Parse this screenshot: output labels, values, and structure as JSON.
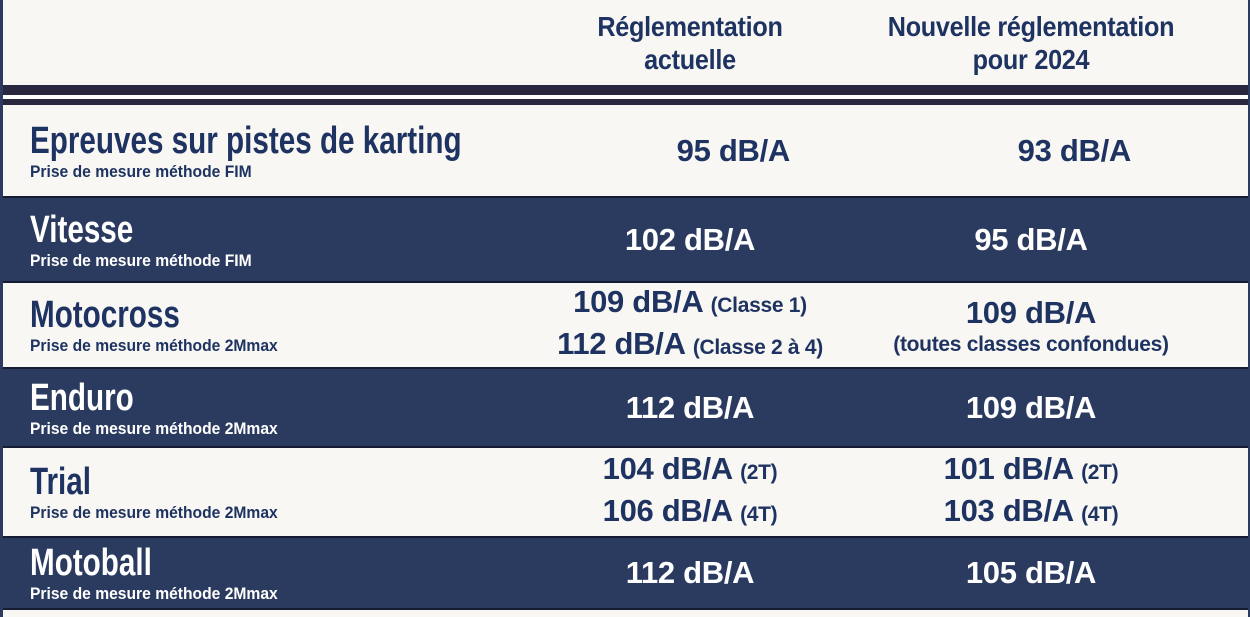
{
  "colors": {
    "band_navy": "#2b3b60",
    "text_navy": "#1e3361",
    "divider_dark": "#29263f",
    "background_offwhite": "#f8f7f3",
    "text_on_navy": "#ffffff"
  },
  "header": {
    "current_label": "Réglementation actuelle",
    "new_label": "Nouvelle réglementation pour 2024"
  },
  "rows": [
    {
      "title": "Epreuves sur pistes de karting",
      "subtitle": "Prise de mesure méthode FIM",
      "theme": "light",
      "current": [
        {
          "value": "95 dB/A",
          "note": ""
        }
      ],
      "new": [
        {
          "value": "93 dB/A",
          "note": ""
        }
      ]
    },
    {
      "title": "Vitesse",
      "subtitle": "Prise de mesure méthode FIM",
      "theme": "dark",
      "current": [
        {
          "value": "102 dB/A",
          "note": ""
        }
      ],
      "new": [
        {
          "value": "95 dB/A",
          "note": ""
        }
      ]
    },
    {
      "title": "Motocross",
      "subtitle": "Prise de mesure méthode 2Mmax",
      "theme": "light",
      "current": [
        {
          "value": "109 dB/A",
          "note": "(Classe 1)"
        },
        {
          "value": "112 dB/A",
          "note": "(Classe 2 à 4)"
        }
      ],
      "new": [
        {
          "value": "109 dB/A",
          "note": "(toutes classes confondues)"
        }
      ]
    },
    {
      "title": "Enduro",
      "subtitle": "Prise de mesure méthode 2Mmax",
      "theme": "dark",
      "current": [
        {
          "value": "112 dB/A",
          "note": ""
        }
      ],
      "new": [
        {
          "value": "109  dB/A",
          "note": ""
        }
      ]
    },
    {
      "title": "Trial",
      "subtitle": "Prise de mesure méthode 2Mmax",
      "theme": "light",
      "current": [
        {
          "value": "104 dB/A",
          "note": "(2T)"
        },
        {
          "value": "106 dB/A",
          "note": "(4T)"
        }
      ],
      "new": [
        {
          "value": "101 dB/A",
          "note": "(2T)"
        },
        {
          "value": "103 dB/A",
          "note": "(4T)"
        }
      ]
    },
    {
      "title": "Motoball",
      "subtitle": "Prise de mesure méthode 2Mmax",
      "theme": "dark",
      "current": [
        {
          "value": "112 dB/A",
          "note": ""
        }
      ],
      "new": [
        {
          "value": "105 dB/A",
          "note": ""
        }
      ]
    }
  ]
}
